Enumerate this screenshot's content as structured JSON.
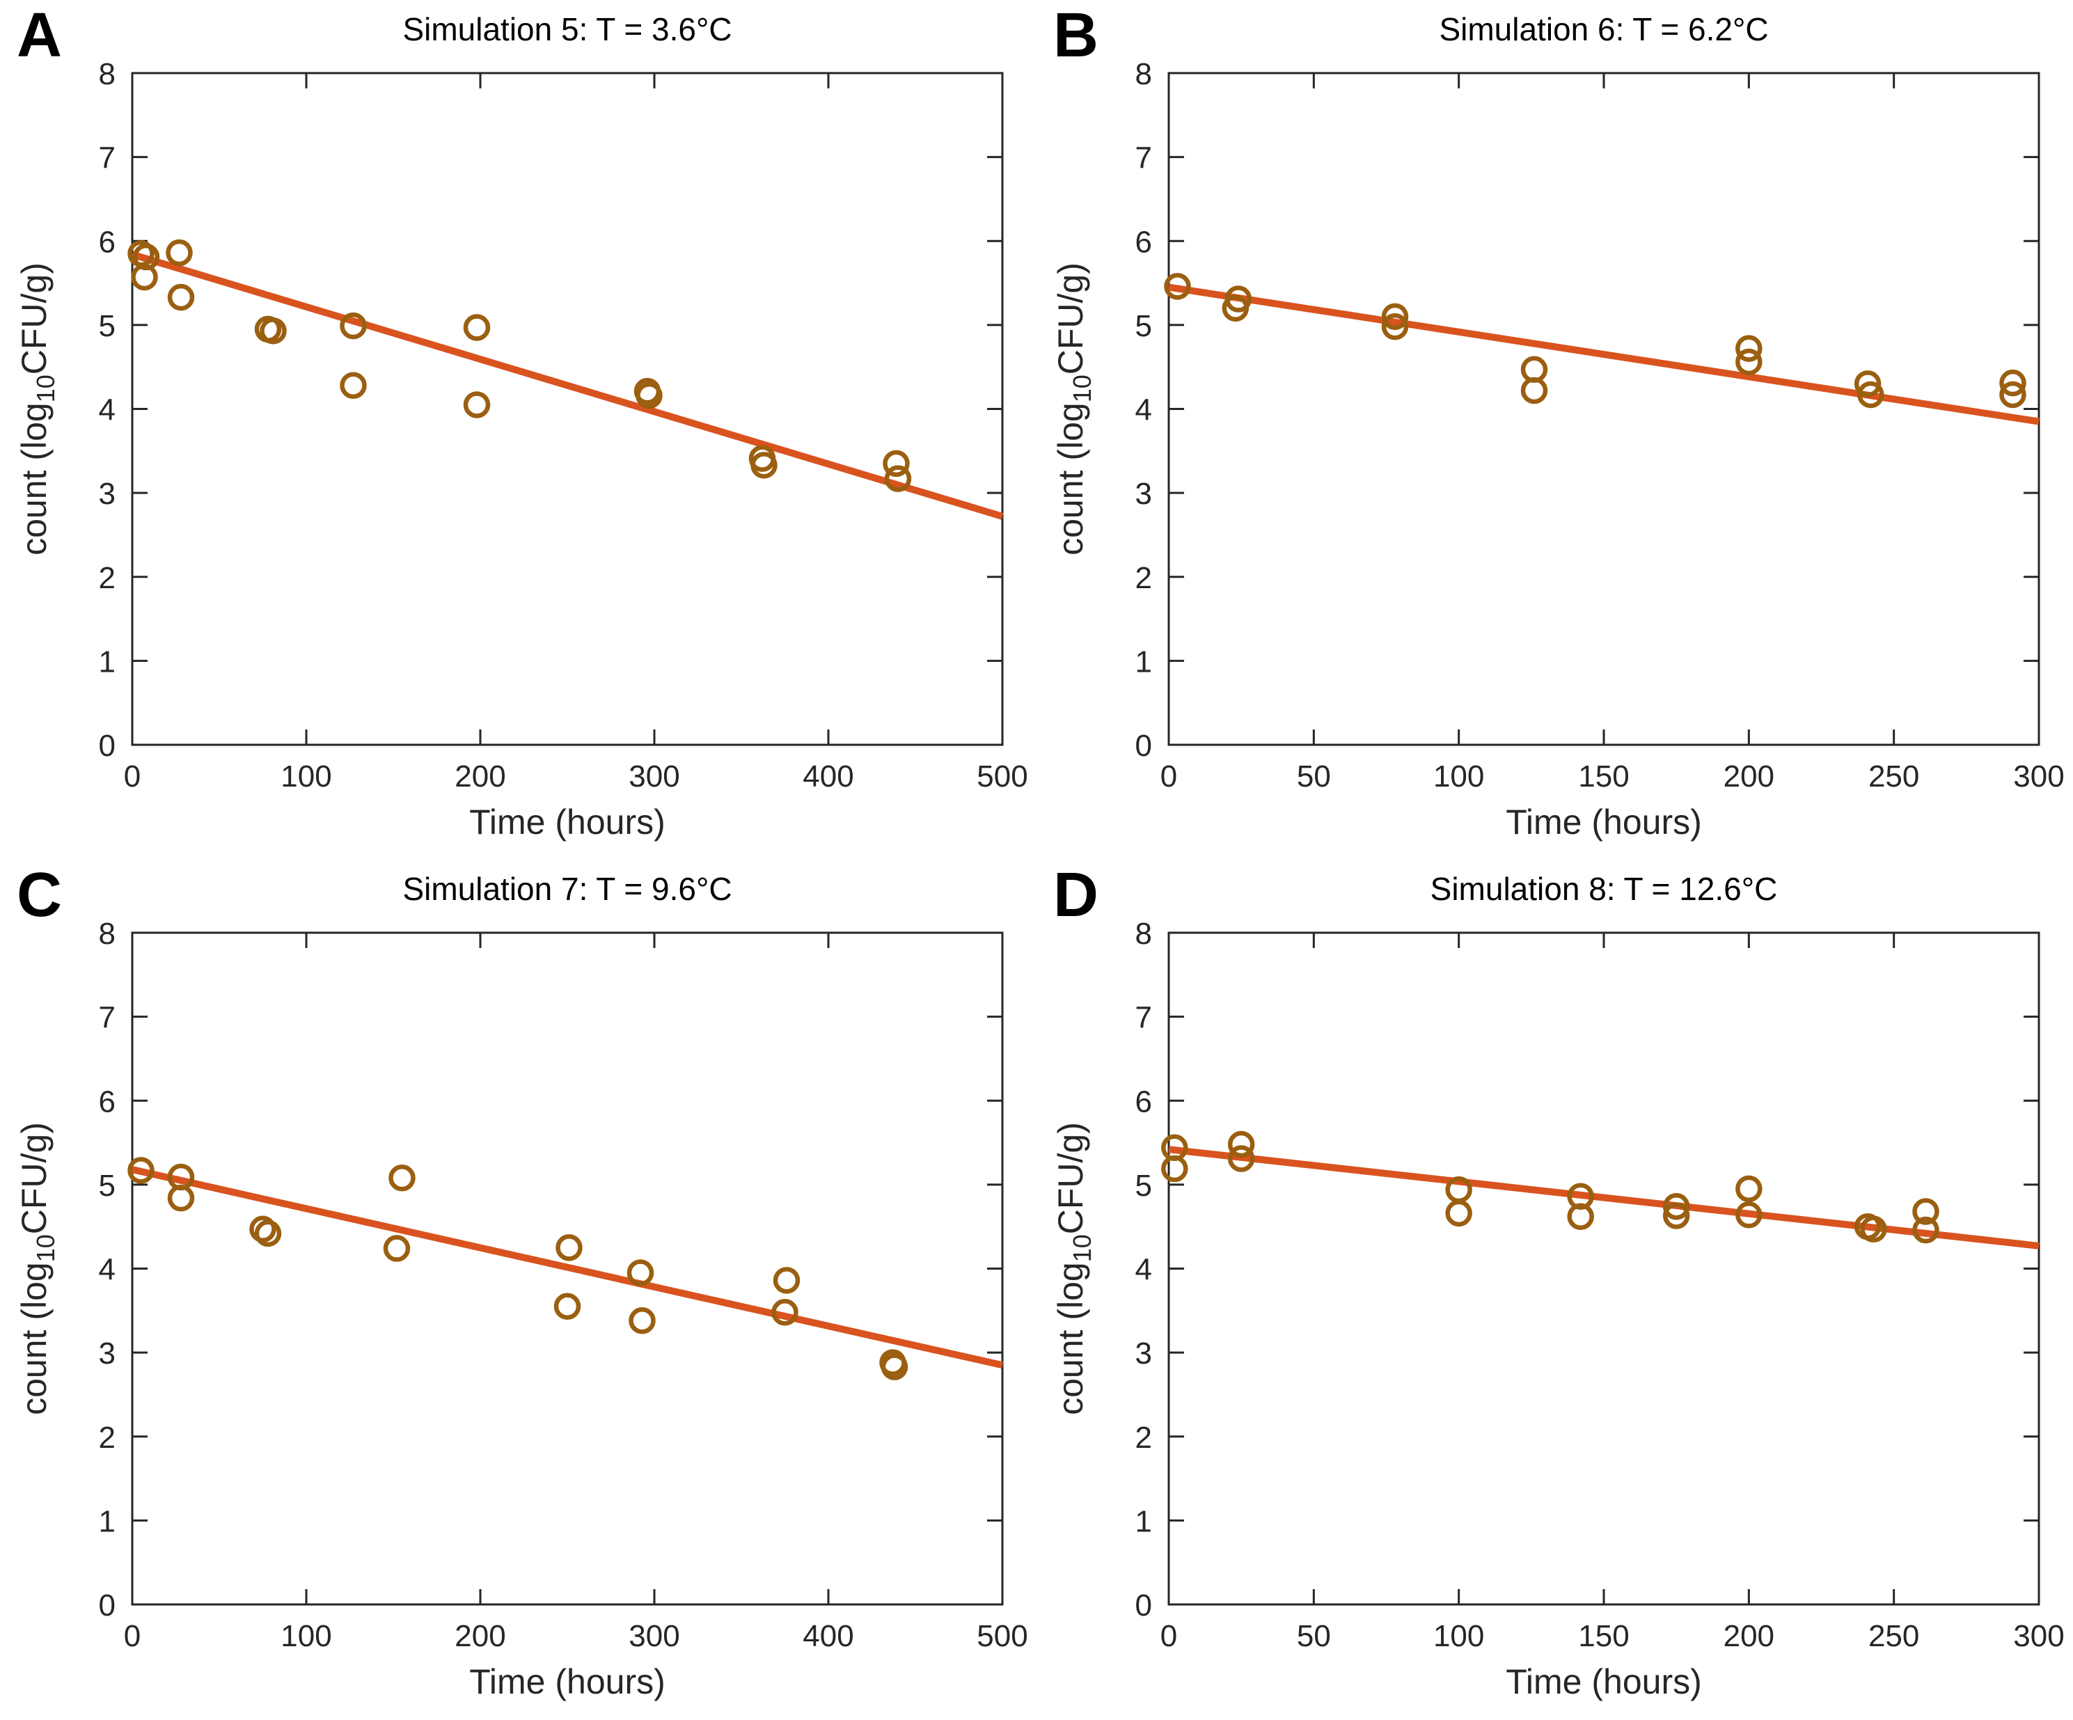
{
  "figure": {
    "xlabel": "Time (hours)",
    "ylabel_prefix": "count (log",
    "ylabel_sub": "10",
    "ylabel_suffix": "CFU/g)",
    "colors": {
      "marker": "#9A5F10",
      "fit_line": "#D9531F",
      "axis": "#262626",
      "text": "#262626"
    }
  },
  "chart_data": [
    {
      "type": "scatter",
      "panel_letter": "A",
      "title": "Simulation 5: T = 3.6°C",
      "xlabel": "Time (hours)",
      "ylabel": "count (log10 CFU/g)",
      "xlim": [
        0,
        500
      ],
      "ylim": [
        0,
        8
      ],
      "xticks": [
        0,
        100,
        200,
        300,
        400,
        500
      ],
      "yticks": [
        0,
        1,
        2,
        3,
        4,
        5,
        6,
        7,
        8
      ],
      "points": [
        [
          5,
          5.85
        ],
        [
          8,
          5.81
        ],
        [
          7,
          5.57
        ],
        [
          27,
          5.86
        ],
        [
          28,
          5.33
        ],
        [
          78,
          4.95
        ],
        [
          81,
          4.93
        ],
        [
          127,
          4.99
        ],
        [
          127,
          4.28
        ],
        [
          198,
          4.97
        ],
        [
          198,
          4.05
        ],
        [
          296,
          4.21
        ],
        [
          297,
          4.16
        ],
        [
          362,
          3.41
        ],
        [
          363,
          3.33
        ],
        [
          439,
          3.35
        ],
        [
          440,
          3.17
        ]
      ],
      "fit_line": {
        "x": [
          0,
          500
        ],
        "y": [
          5.84,
          2.72
        ]
      }
    },
    {
      "type": "scatter",
      "panel_letter": "B",
      "title": "Simulation 6: T = 6.2°C",
      "xlabel": "Time (hours)",
      "ylabel": "count (log10 CFU/g)",
      "xlim": [
        0,
        300
      ],
      "ylim": [
        0,
        8
      ],
      "xticks": [
        0,
        50,
        100,
        150,
        200,
        250,
        300
      ],
      "yticks": [
        0,
        1,
        2,
        3,
        4,
        5,
        6,
        7,
        8
      ],
      "points": [
        [
          3,
          5.46
        ],
        [
          24,
          5.31
        ],
        [
          23,
          5.2
        ],
        [
          78,
          5.1
        ],
        [
          78,
          4.98
        ],
        [
          126,
          4.47
        ],
        [
          126,
          4.22
        ],
        [
          200,
          4.72
        ],
        [
          200,
          4.56
        ],
        [
          241,
          4.3
        ],
        [
          242,
          4.17
        ],
        [
          291,
          4.31
        ],
        [
          291,
          4.17
        ]
      ],
      "fit_line": {
        "x": [
          0,
          300
        ],
        "y": [
          5.45,
          3.85
        ]
      }
    },
    {
      "type": "scatter",
      "panel_letter": "C",
      "title": "Simulation 7: T = 9.6°C",
      "xlabel": "Time (hours)",
      "ylabel": "count (log10 CFU/g)",
      "xlim": [
        0,
        500
      ],
      "ylim": [
        0,
        8
      ],
      "xticks": [
        0,
        100,
        200,
        300,
        400,
        500
      ],
      "yticks": [
        0,
        1,
        2,
        3,
        4,
        5,
        6,
        7,
        8
      ],
      "points": [
        [
          5,
          5.17
        ],
        [
          28,
          5.09
        ],
        [
          28,
          4.84
        ],
        [
          75,
          4.47
        ],
        [
          78,
          4.42
        ],
        [
          155,
          5.08
        ],
        [
          152,
          4.24
        ],
        [
          251,
          4.25
        ],
        [
          250,
          3.55
        ],
        [
          292,
          3.95
        ],
        [
          293,
          3.38
        ],
        [
          376,
          3.86
        ],
        [
          375,
          3.48
        ],
        [
          437,
          2.88
        ],
        [
          438,
          2.83
        ]
      ],
      "fit_line": {
        "x": [
          0,
          500
        ],
        "y": [
          5.18,
          2.85
        ]
      }
    },
    {
      "type": "scatter",
      "panel_letter": "D",
      "title": "Simulation 8: T = 12.6°C",
      "xlabel": "Time (hours)",
      "ylabel": "count (log10 CFU/g)",
      "xlim": [
        0,
        300
      ],
      "ylim": [
        0,
        8
      ],
      "xticks": [
        0,
        50,
        100,
        150,
        200,
        250,
        300
      ],
      "yticks": [
        0,
        1,
        2,
        3,
        4,
        5,
        6,
        7,
        8
      ],
      "points": [
        [
          2,
          5.44
        ],
        [
          2,
          5.19
        ],
        [
          25,
          5.48
        ],
        [
          25,
          5.31
        ],
        [
          100,
          4.94
        ],
        [
          100,
          4.66
        ],
        [
          142,
          4.86
        ],
        [
          142,
          4.62
        ],
        [
          175,
          4.74
        ],
        [
          175,
          4.63
        ],
        [
          200,
          4.95
        ],
        [
          200,
          4.64
        ],
        [
          241,
          4.5
        ],
        [
          243,
          4.47
        ],
        [
          261,
          4.68
        ],
        [
          261,
          4.46
        ]
      ],
      "fit_line": {
        "x": [
          0,
          300
        ],
        "y": [
          5.42,
          4.27
        ]
      }
    }
  ]
}
